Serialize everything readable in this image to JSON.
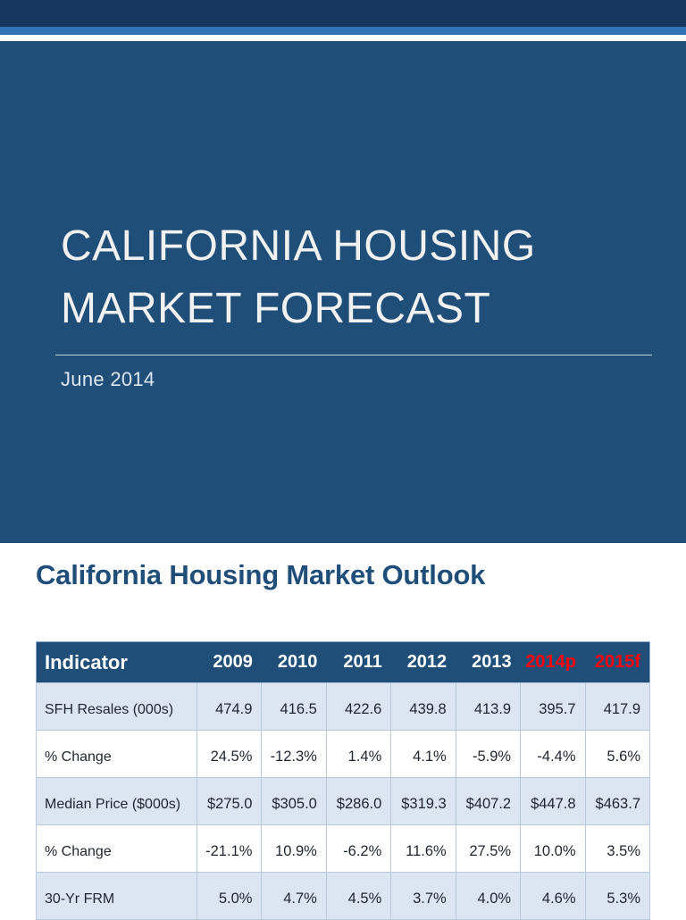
{
  "slide": {
    "title_line1": "CALIFORNIA HOUSING",
    "title_line2": "MARKET FORECAST",
    "subtitle": "June 2014"
  },
  "section": {
    "heading": "California Housing Market Outlook"
  },
  "table": {
    "columns": [
      {
        "label": "Indicator",
        "highlight": false
      },
      {
        "label": "2009",
        "highlight": false
      },
      {
        "label": "2010",
        "highlight": false
      },
      {
        "label": "2011",
        "highlight": false
      },
      {
        "label": "2012",
        "highlight": false
      },
      {
        "label": "2013",
        "highlight": false
      },
      {
        "label": "2014p",
        "highlight": true
      },
      {
        "label": "2015f",
        "highlight": true
      }
    ],
    "rows": [
      {
        "cells": [
          "SFH Resales (000s)",
          "474.9",
          "416.5",
          "422.6",
          "439.8",
          "413.9",
          "395.7",
          "417.9"
        ]
      },
      {
        "cells": [
          "% Change",
          "24.5%",
          "-12.3%",
          "1.4%",
          "4.1%",
          "-5.9%",
          "-4.4%",
          "5.6%"
        ]
      },
      {
        "cells": [
          "Median Price ($000s)",
          "$275.0",
          "$305.0",
          "$286.0",
          "$319.3",
          "$407.2",
          "$447.8",
          "$463.7"
        ]
      },
      {
        "cells": [
          "% Change",
          "-21.1%",
          "10.9%",
          "-6.2%",
          "11.6%",
          "27.5%",
          "10.0%",
          "3.5%"
        ]
      },
      {
        "cells": [
          "30-Yr FRM",
          "5.0%",
          "4.7%",
          "4.5%",
          "3.7%",
          "4.0%",
          "4.6%",
          "5.3%"
        ]
      }
    ]
  },
  "colors": {
    "top_bar": "#17375E",
    "accent_stripe": "#2E74B5",
    "slide_bg": "#1F4E79",
    "table_header_bg": "#1F4E79",
    "row_alt": "#DCE6F2",
    "highlight_red": "#FF0000",
    "heading": "#1F4E79"
  }
}
